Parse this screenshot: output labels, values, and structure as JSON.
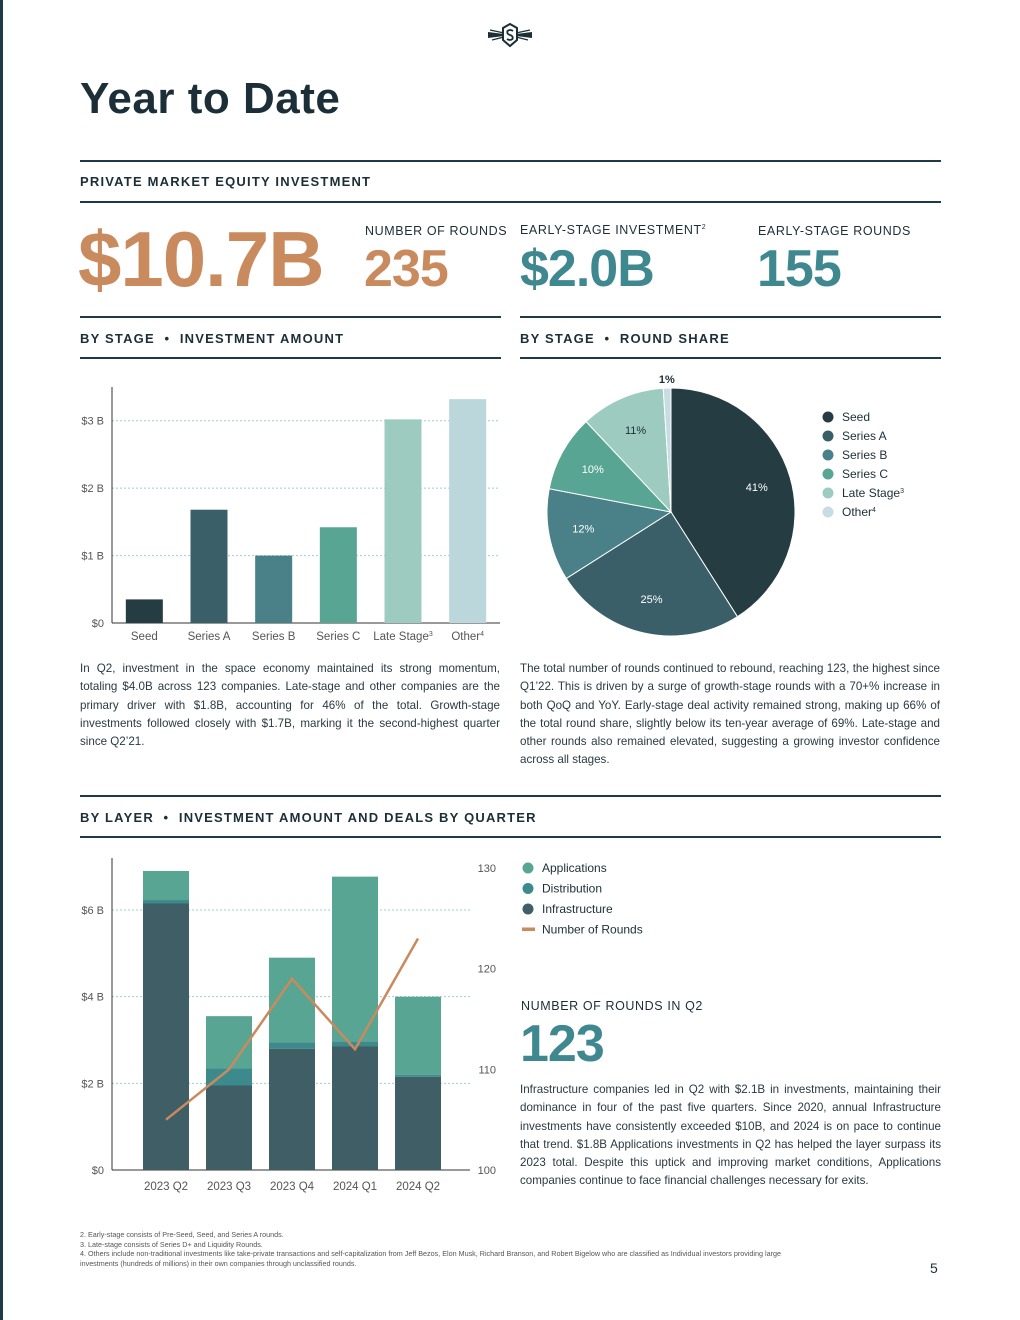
{
  "page": {
    "title": "Year to Date",
    "page_number": "5"
  },
  "kpis": {
    "section_title": "PRIVATE MARKET EQUITY INVESTMENT",
    "total_investment": "$10.7B",
    "rounds_label": "NUMBER OF ROUNDS",
    "rounds_value": "235",
    "early_investment_label": "EARLY-STAGE INVESTMENT",
    "early_investment_sup": "2",
    "early_investment_value": "$2.0B",
    "early_rounds_label": "EARLY-STAGE ROUNDS",
    "early_rounds_value": "155"
  },
  "stage_amount": {
    "section_title": "BY STAGE  •  INVESTMENT AMOUNT",
    "paragraph": "In Q2, investment in the space economy maintained its strong momentum, totaling $4.0B across 123 companies. Late-stage and other companies are the primary driver with $1.8B, accounting for 46% of the total. Growth-stage investments followed closely with $1.7B, marking it the second-highest quarter since Q2’21."
  },
  "stage_share": {
    "section_title": "BY STAGE  •  ROUND SHARE",
    "paragraph": "The total number of rounds continued to rebound, reaching 123, the highest since Q1’22. This is driven by a surge of growth-stage rounds with a 70+% increase in both QoQ and YoY. Early-stage deal activity remained strong, making up 66% of the total round share, slightly below its ten-year average of 69%. Late-stage and other rounds also remained elevated, suggesting a growing investor confidence across all stages."
  },
  "layer": {
    "section_title": "BY LAYER  •  INVESTMENT AMOUNT AND DEALS BY QUARTER",
    "rounds_q2_label": "NUMBER OF ROUNDS IN Q2",
    "rounds_q2_value": "123",
    "paragraph": "Infrastructure companies led in Q2 with $2.1B in investments, maintaining their dominance in four of the past five quarters. Since 2020, annual Infrastructure investments have consistently exceeded $10B, and 2024 is on pace to continue that trend. $1.8B Applications investments in Q2 has helped the layer surpass its 2023 total. Despite this uptick and improving market conditions, Applications companies continue to face financial challenges necessary for exits."
  },
  "footnotes": [
    "2. Early-stage consists of Pre-Seed, Seed, and Series A rounds.",
    "3. Late-stage consists of Series D+ and Liquidity Rounds.",
    "4. Others include non-traditional investments like take-private transactions and self-capitalization from Jeff Bezos, Elon Musk, Richard Branson, and Robert Bigelow who are classified as Individual investors providing large investments (hundreds of millions) in their own companies through unclassified rounds."
  ],
  "chart_data": [
    {
      "type": "bar",
      "title": "",
      "categories": [
        "Seed",
        "Series A",
        "Series B",
        "Series C",
        "Late Stage",
        "Other"
      ],
      "category_sups": [
        "",
        "",
        "",
        "",
        "3",
        "4"
      ],
      "values": [
        0.35,
        1.68,
        1.0,
        1.42,
        3.02,
        3.32
      ],
      "colors": [
        "#253c42",
        "#3a5f69",
        "#4a8088",
        "#58a594",
        "#9ecbc0",
        "#bbd7dc"
      ],
      "yticks": [
        0,
        1,
        2,
        3
      ],
      "ytick_labels": [
        "$0",
        "$1 B",
        "$2 B",
        "$3 B"
      ],
      "ylim": [
        0,
        3.5
      ],
      "grid": true
    },
    {
      "type": "pie",
      "labels": [
        "Seed",
        "Series A",
        "Series B",
        "Series C",
        "Late Stage",
        "Other"
      ],
      "label_sups": [
        "",
        "",
        "",
        "",
        "3",
        "4"
      ],
      "values": [
        41,
        25,
        12,
        10,
        11,
        1
      ],
      "slice_labels": [
        "41%",
        "25%",
        "12%",
        "10%",
        "11%",
        "1%"
      ],
      "colors": [
        "#253c42",
        "#3a5f69",
        "#4a8088",
        "#58a594",
        "#9ecbc0",
        "#c7dde3"
      ],
      "legend_position": "right"
    },
    {
      "type": "bar",
      "stacked": true,
      "categories": [
        "2023 Q2",
        "2023 Q3",
        "2023 Q4",
        "2024 Q1",
        "2024 Q2"
      ],
      "series": [
        {
          "name": "Infrastructure",
          "color": "#3f5e66",
          "values": [
            6.15,
            1.95,
            2.8,
            2.85,
            2.15
          ]
        },
        {
          "name": "Distribution",
          "color": "#3d8a8c",
          "values": [
            0.08,
            0.4,
            0.15,
            0.12,
            0.05
          ]
        },
        {
          "name": "Applications",
          "color": "#58a594",
          "values": [
            0.67,
            1.2,
            1.95,
            3.8,
            1.8
          ]
        }
      ],
      "line_series": {
        "name": "Number of Rounds",
        "color": "#c98a5e",
        "values": [
          105,
          110,
          119,
          112,
          123
        ],
        "axis": "right"
      },
      "legend_order": [
        "Applications",
        "Distribution",
        "Infrastructure",
        "Number of Rounds"
      ],
      "yticks": [
        0,
        2,
        4,
        6
      ],
      "ytick_labels": [
        "$0",
        "$2 B",
        "$4 B",
        "$6 B"
      ],
      "ylim": [
        0,
        7.2
      ],
      "y2ticks": [
        100,
        110,
        120,
        130
      ],
      "y2lim": [
        100,
        131
      ],
      "grid": true
    }
  ]
}
